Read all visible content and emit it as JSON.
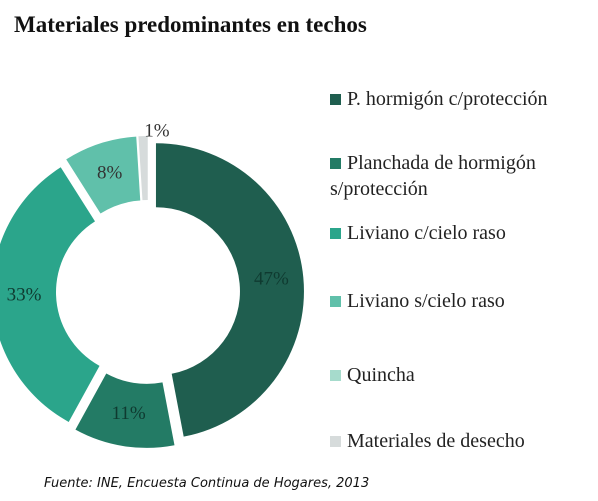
{
  "chart_data": {
    "type": "donut",
    "title": "Materiales predominantes en techos",
    "categories": [
      "P. hormigón c/protección",
      "Planchada de hormigón s/protección",
      "Liviano c/cielo raso",
      "Liviano s/cielo raso",
      "Quincha",
      "Materiales de desecho"
    ],
    "values": [
      47,
      11,
      33,
      8,
      0,
      1
    ],
    "value_labels": [
      "47%",
      "11%",
      "33%",
      "8%",
      null,
      "1%"
    ],
    "colors": [
      "#1f5e4f",
      "#237b65",
      "#2ba58b",
      "#60c0aa",
      "#a6dbcc",
      "#d6dbdb"
    ],
    "source": "Fuente: INE, Encuesta Continua de Hogares, 2013"
  }
}
